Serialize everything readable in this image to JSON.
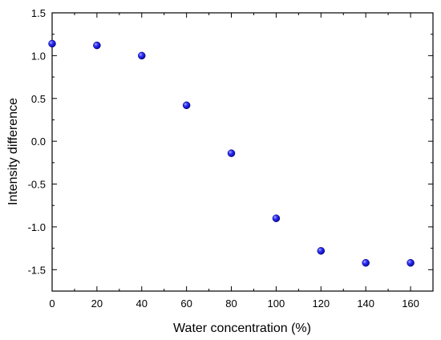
{
  "chart_data": {
    "type": "scatter",
    "title": "",
    "xlabel": "Water concentration (%)",
    "ylabel": "Intensity difference",
    "xlim": [
      0,
      170
    ],
    "ylim": [
      -1.75,
      1.5
    ],
    "xticks": [
      0,
      20,
      40,
      60,
      80,
      100,
      120,
      140,
      160
    ],
    "yticks": [
      -1.5,
      -1.0,
      -0.5,
      0.0,
      0.5,
      1.0,
      1.5
    ],
    "ytick_labels": [
      "-1.5",
      "-1.0",
      "-0.5",
      "0.0",
      "0.5",
      "1.0",
      "1.5"
    ],
    "grid": false,
    "series": [
      {
        "x": [
          0,
          20,
          40,
          60,
          80,
          100,
          120,
          140,
          160
        ],
        "y": [
          1.14,
          1.12,
          1.0,
          0.42,
          -0.14,
          -0.9,
          -1.28,
          -1.42,
          -1.42
        ]
      }
    ],
    "marker_color": "#1a1aff"
  }
}
